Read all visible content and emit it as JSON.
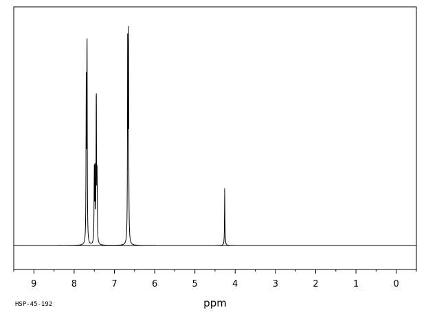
{
  "chart_data": {
    "type": "line",
    "title": "",
    "xlabel": "ppm",
    "ylabel": "",
    "x_reversed": true,
    "xlim": [
      9.5,
      -0.5
    ],
    "ylim": [
      0,
      1
    ],
    "grid": false,
    "legend": "none",
    "x_ticks": [
      9,
      8,
      7,
      6,
      5,
      4,
      3,
      2,
      1,
      0
    ],
    "x_tick_labels": [
      "9",
      "8",
      "7",
      "6",
      "5",
      "4",
      "3",
      "2",
      "1",
      "0"
    ],
    "peaks": [
      {
        "ppm": 7.7,
        "intensity": 0.71
      },
      {
        "ppm": 7.68,
        "intensity": 0.96
      },
      {
        "ppm": 7.5,
        "intensity": 0.33
      },
      {
        "ppm": 7.48,
        "intensity": 0.35
      },
      {
        "ppm": 7.45,
        "intensity": 0.72
      },
      {
        "ppm": 7.43,
        "intensity": 0.3
      },
      {
        "ppm": 6.67,
        "intensity": 0.95
      },
      {
        "ppm": 6.65,
        "intensity": 1.0
      },
      {
        "ppm": 4.26,
        "intensity": 0.27
      }
    ],
    "sample_code": "HSP-45-192"
  },
  "colors": {
    "line": "#000000",
    "frame": "#000000",
    "background": "#ffffff"
  }
}
